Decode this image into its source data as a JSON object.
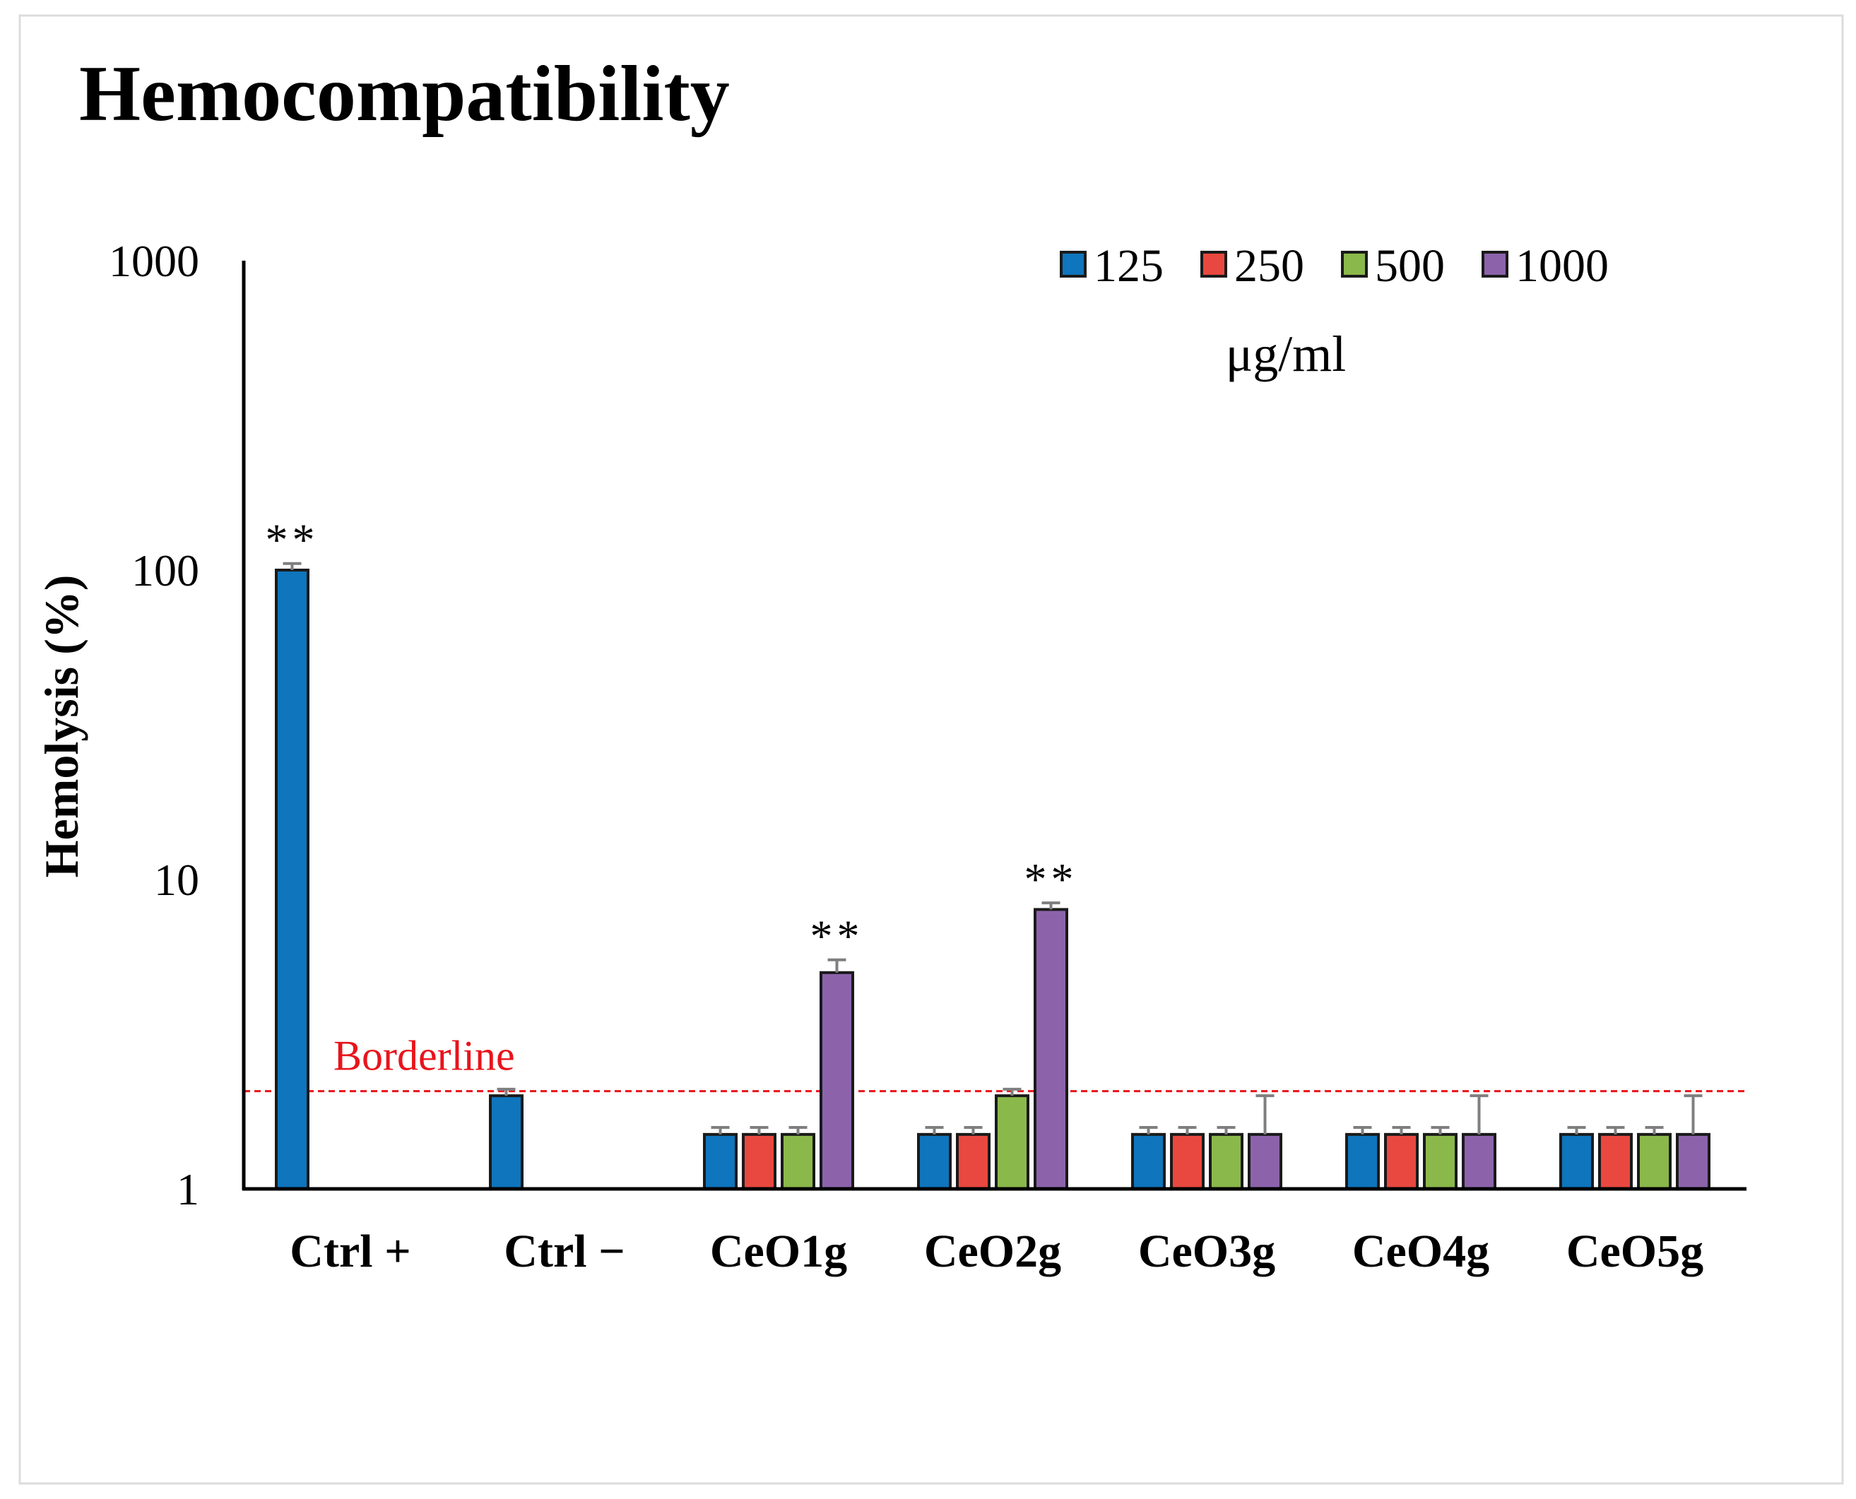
{
  "chart_data": {
    "type": "bar",
    "title": "Hemocompatibility",
    "ylabel": "Hemolysis (%)",
    "xlabel": "",
    "yscale": "log",
    "ylim": [
      1,
      1000
    ],
    "yticks": [
      {
        "value": 1,
        "label": "1"
      },
      {
        "value": 10,
        "label": "10"
      },
      {
        "value": 100,
        "label": "100"
      },
      {
        "value": 1000,
        "label": "1000"
      }
    ],
    "categories": [
      "Ctrl +",
      "Ctrl −",
      "CeO1g",
      "CeO2g",
      "CeO3g",
      "CeO4g",
      "CeO5g"
    ],
    "series": [
      {
        "name": "125",
        "color": "#0f75bc",
        "values": [
          100,
          2.0,
          1.5,
          1.5,
          1.5,
          1.5,
          1.5
        ],
        "err": [
          5,
          0.1,
          0.08,
          0.08,
          0.08,
          0.08,
          0.08
        ]
      },
      {
        "name": "250",
        "color": "#e8483f",
        "values": [
          null,
          null,
          1.5,
          1.5,
          1.5,
          1.5,
          1.5
        ],
        "err": [
          null,
          null,
          0.08,
          0.08,
          0.08,
          0.08,
          0.08
        ]
      },
      {
        "name": "500",
        "color": "#8bb84a",
        "values": [
          null,
          null,
          1.5,
          2.0,
          1.5,
          1.5,
          1.5
        ],
        "err": [
          null,
          null,
          0.08,
          0.1,
          0.08,
          0.08,
          0.08
        ]
      },
      {
        "name": "1000",
        "color": "#8c63ab",
        "values": [
          null,
          null,
          5.0,
          8.0,
          1.5,
          1.5,
          1.5
        ],
        "err": [
          null,
          null,
          0.5,
          0.4,
          0.5,
          0.5,
          0.5
        ]
      }
    ],
    "legend_unit": "μg/ml",
    "legend_position": "top-right",
    "significance_marker": "**",
    "significance": [
      {
        "category": 0,
        "series": 0
      },
      {
        "category": 2,
        "series": 3
      },
      {
        "category": 3,
        "series": 3
      }
    ],
    "reference_line": {
      "label": "Borderline",
      "value": 2.07,
      "color": "#e8141b"
    }
  }
}
